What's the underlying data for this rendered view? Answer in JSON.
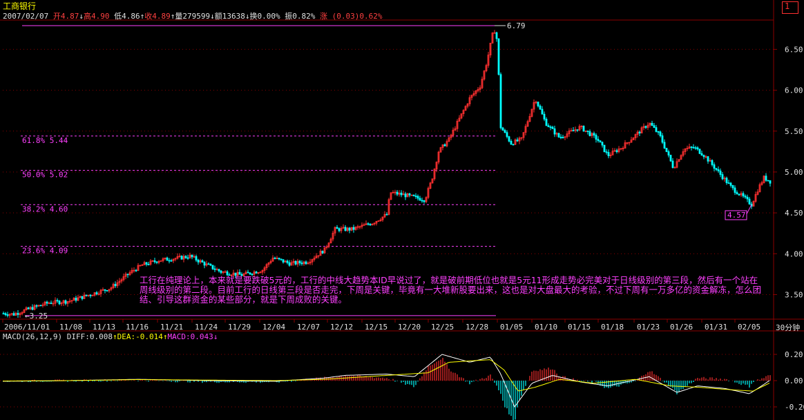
{
  "header": {
    "title": "工商银行",
    "date": "2007/02/07",
    "open_label": "开",
    "open_value": "4.87",
    "open_arrow": "↓",
    "high_label": "高",
    "high_value": "4.90",
    "low_label": "低",
    "low_value": "4.86",
    "low_arrow": "↑",
    "close_label": "收",
    "close_value": "4.89",
    "close_arrow": "↑",
    "volume_label": "量",
    "volume_value": "279599",
    "volume_arrow": "↓",
    "amount_label": "额",
    "amount_value": "13638",
    "amount_arrow": "↓",
    "turnover_label": "换",
    "turnover_value": "0.00%",
    "amplitude_label": "振",
    "amplitude_value": "0.82%",
    "change_label": "涨",
    "change_value": "(0.03)",
    "change_pct": "0.62%"
  },
  "top_right_icon": "1",
  "price_axis": {
    "ticks": [
      "6.50",
      "6.00",
      "5.50",
      "5.00",
      "4.50",
      "4.00",
      "3.50"
    ]
  },
  "date_axis": {
    "ticks": [
      "2006/11/01",
      "11/08",
      "11/13",
      "11/16",
      "11/21",
      "11/24",
      "11/29",
      "12/04",
      "12/07",
      "12/12",
      "12/15",
      "12/20",
      "12/25",
      "12/28",
      "01/05",
      "01/10",
      "01/15",
      "01/18",
      "01/23",
      "01/26",
      "01/31",
      "02/05"
    ],
    "period": "30分钟"
  },
  "fib_levels": [
    {
      "label": "61.8% 5.44",
      "price": 5.44
    },
    {
      "label": "50.0% 5.02",
      "price": 5.02
    },
    {
      "label": "38.2% 4.60",
      "price": 4.6
    },
    {
      "label": "23.6% 4.09",
      "price": 4.09
    }
  ],
  "markers": {
    "high": "6.79",
    "low_end": "3.25",
    "recent_low": "4.57"
  },
  "annotation": "工行在纯理论上，本来就是要跌破5元的，工行的中线大趋势本ID早说过了，就是破前期低位也就是5元11形成走势必完美对于日线级别的第三段，然后有一个站在周线级别的第二段。目前工行的日线第三段是否走完，下周是关键，毕竟有一大堆新股要出来，这也是对大盘最大的考验，不过下周有一万多亿的资金解冻，怎么团结、引导这群资金的某些部分，就是下周成败的关键。",
  "macd": {
    "params": "MACD(26,12,9)",
    "diff_label": "DIFF:",
    "diff_value": "0.008",
    "diff_arrow": "↑",
    "dea_label": "DEA:",
    "dea_value": "-0.014",
    "dea_arrow": "↑",
    "macd_label": "MACD:",
    "macd_value": "0.043",
    "macd_arrow": "↓",
    "ticks": [
      "0.20",
      "0.00",
      "-0.20"
    ]
  },
  "colors": {
    "up": "#ff3030",
    "down": "#00ffff",
    "grid": "#8b0000",
    "fib": "#ff40ff",
    "diff": "#ffffff",
    "dea": "#ffff00"
  },
  "chart_data": {
    "type": "candlestick",
    "price_ylim": [
      3.2,
      6.85
    ],
    "close_series_approx": [
      {
        "date": "2006/11/01",
        "close": 3.27
      },
      {
        "date": "11/08",
        "close": 3.4
      },
      {
        "date": "11/13",
        "close": 3.55
      },
      {
        "date": "11/16",
        "close": 3.85
      },
      {
        "date": "11/21",
        "close": 3.92
      },
      {
        "date": "11/24",
        "close": 3.9
      },
      {
        "date": "11/29",
        "close": 3.75
      },
      {
        "date": "12/04",
        "close": 3.95
      },
      {
        "date": "12/07",
        "close": 3.9
      },
      {
        "date": "12/12",
        "close": 4.3
      },
      {
        "date": "12/15",
        "close": 4.55
      },
      {
        "date": "12/20",
        "close": 4.7
      },
      {
        "date": "12/25",
        "close": 5.4
      },
      {
        "date": "12/28",
        "close": 6.2
      },
      {
        "date": "01/04",
        "close": 6.79
      },
      {
        "date": "01/05",
        "close": 5.35
      },
      {
        "date": "01/10",
        "close": 5.9
      },
      {
        "date": "01/15",
        "close": 5.45
      },
      {
        "date": "01/18",
        "close": 5.2
      },
      {
        "date": "01/23",
        "close": 5.6
      },
      {
        "date": "01/26",
        "close": 5.2
      },
      {
        "date": "01/31",
        "close": 5.05
      },
      {
        "date": "02/05",
        "close": 4.75
      },
      {
        "date": "02/07",
        "close": 4.89
      }
    ],
    "macd_ylim": [
      -0.3,
      0.3
    ]
  }
}
